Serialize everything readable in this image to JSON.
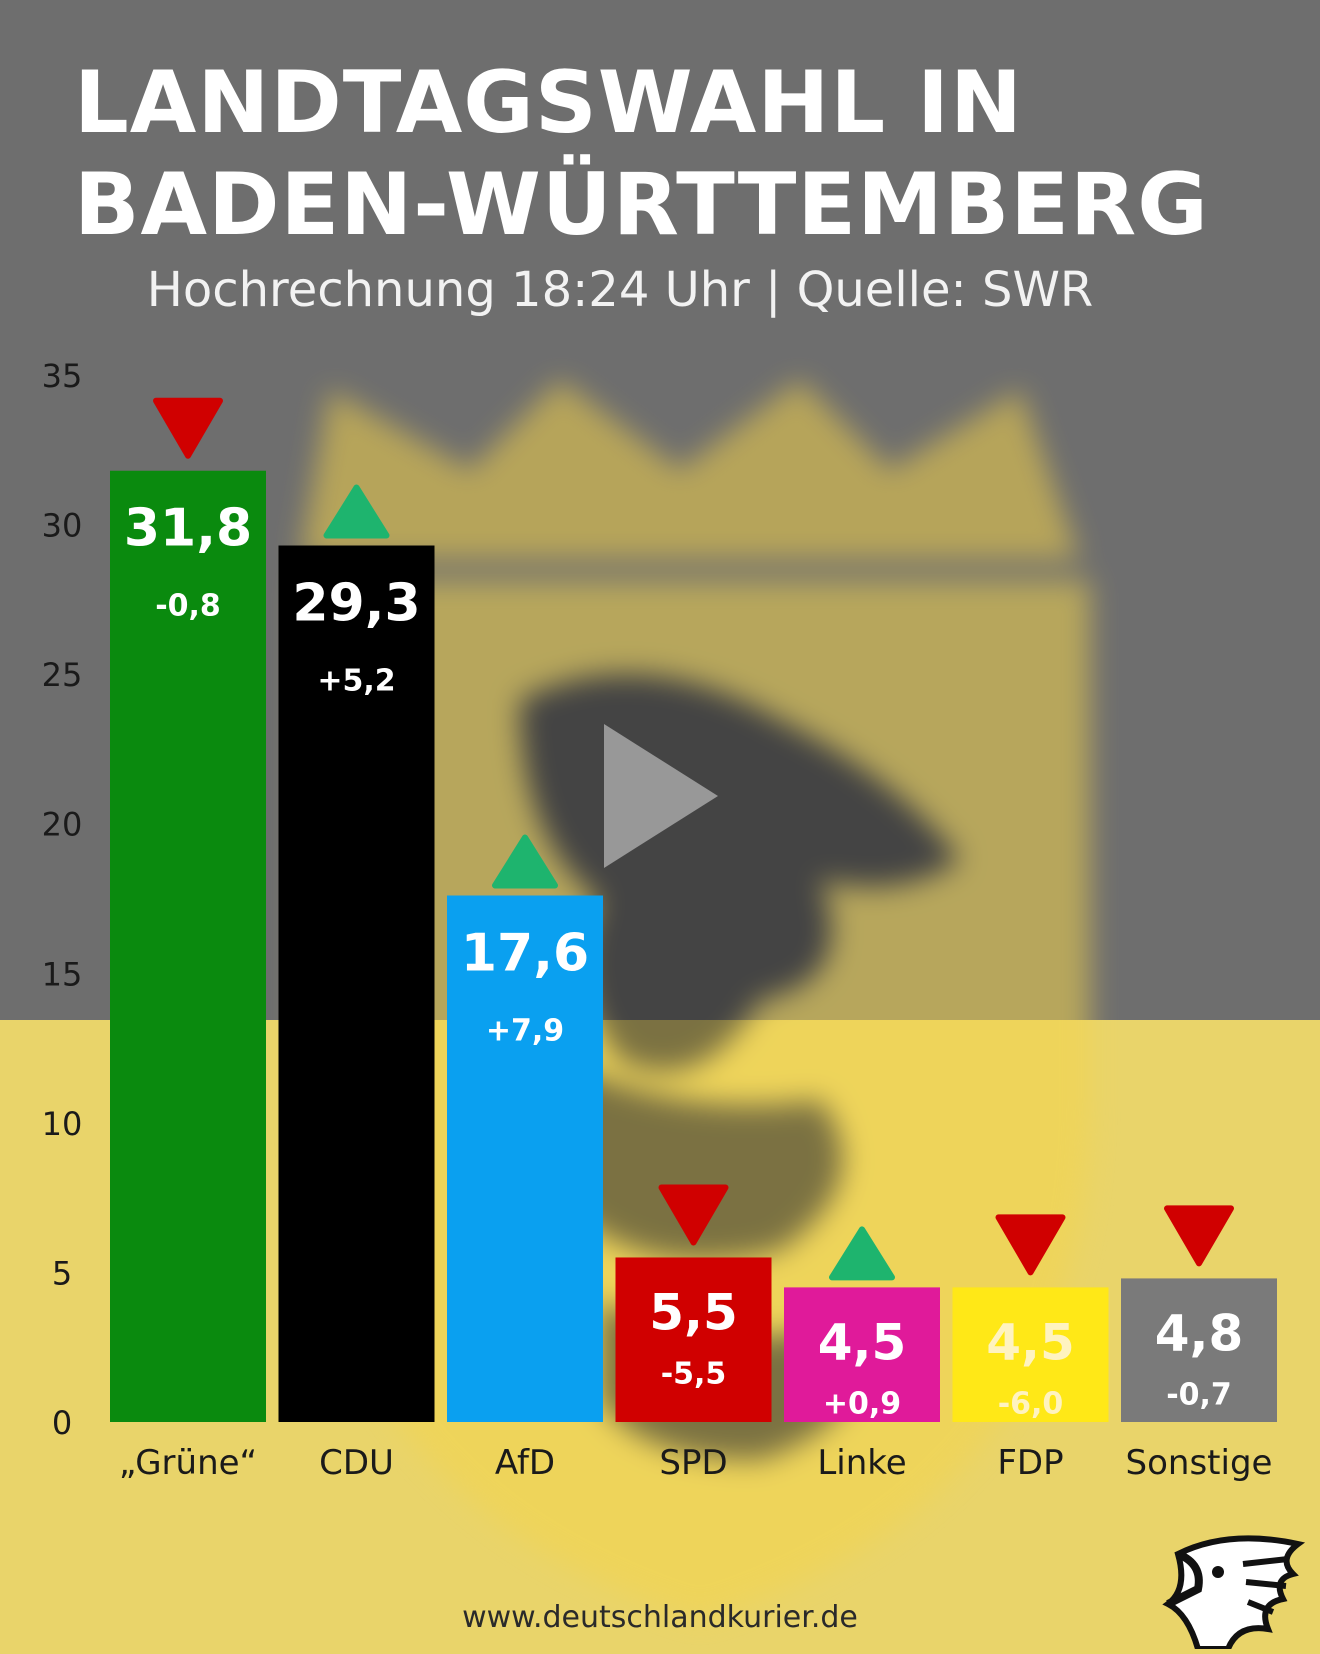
{
  "page": {
    "title_line1": "LANDTAGSWAHL IN",
    "title_line2": "BADEN-WÜRTTEMBERG",
    "subtitle": "Hochrechnung 18:24 Uhr | Quelle: SWR",
    "footer": "www.deutschlandkurier.de",
    "play_icon": "play-icon",
    "logo_icon": "eagle-logo-icon",
    "background": "blurred coat of arms of Baden-Württemberg"
  },
  "chart_data": {
    "type": "bar",
    "title": "LANDTAGSWAHL IN BADEN-WÜRTTEMBERG",
    "subtitle": "Hochrechnung 18:24 Uhr | Quelle: SWR",
    "xlabel": "",
    "ylabel": "",
    "ylim": [
      0,
      35
    ],
    "yticks": [
      0,
      5,
      10,
      15,
      20,
      25,
      30,
      35
    ],
    "grid": false,
    "categories": [
      "„Grüne“",
      "CDU",
      "AfD",
      "SPD",
      "Linke",
      "FDP",
      "Sonstige"
    ],
    "values": [
      31.8,
      29.3,
      17.6,
      5.5,
      4.5,
      4.5,
      4.8
    ],
    "value_labels": [
      "31,8",
      "29,3",
      "17,6",
      "5,5",
      "4,5",
      "4,5",
      "4,8"
    ],
    "changes": [
      "-0,8",
      "+5,2",
      "+7,9",
      "-5,5",
      "+0,9",
      "-6,0",
      "-0,7"
    ],
    "trend": [
      "down",
      "up",
      "up",
      "down",
      "up",
      "down",
      "down"
    ],
    "colors": [
      "#0a8a0e",
      "#000000",
      "#0aa0f0",
      "#d00000",
      "#e01a9a",
      "#ffe817",
      "#7a7a7a"
    ],
    "label_colors": [
      "#ffffff",
      "#ffffff",
      "#ffffff",
      "#ffffff",
      "#ffffff",
      "#fff3c0",
      "#ffffff"
    ],
    "trend_colors": {
      "up": "#1eb46e",
      "down": "#d00000"
    }
  }
}
